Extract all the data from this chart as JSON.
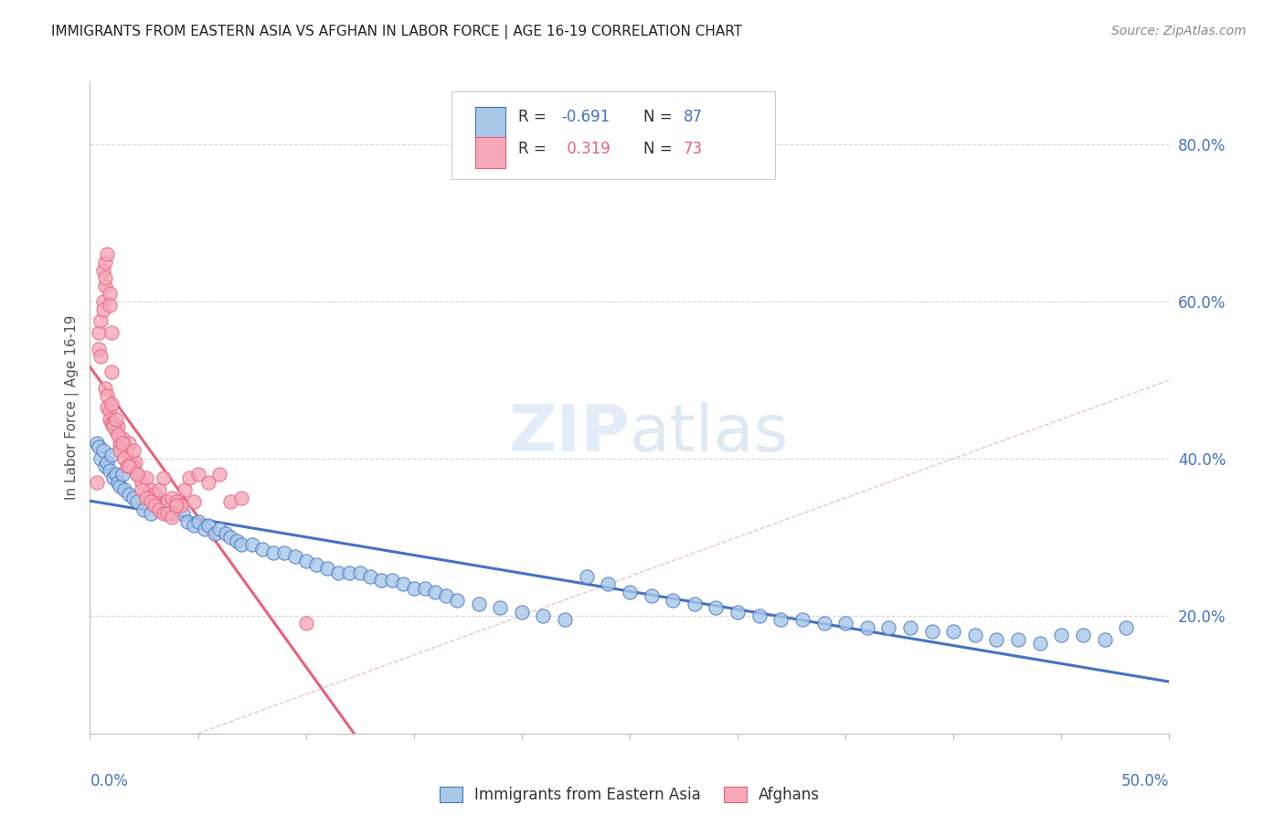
{
  "title": "IMMIGRANTS FROM EASTERN ASIA VS AFGHAN IN LABOR FORCE | AGE 16-19 CORRELATION CHART",
  "source": "Source: ZipAtlas.com",
  "ylabel": "In Labor Force | Age 16-19",
  "right_yticks": [
    "80.0%",
    "60.0%",
    "40.0%",
    "20.0%"
  ],
  "right_ytick_vals": [
    0.8,
    0.6,
    0.4,
    0.2
  ],
  "xlim": [
    0.0,
    0.5
  ],
  "ylim": [
    0.05,
    0.88
  ],
  "color_eastern_asia": "#a8c8e8",
  "color_afghans": "#f5a8b8",
  "color_line_eastern_asia": "#4472c4",
  "color_line_afghans": "#e8607a",
  "color_diagonal": "#e0b8c0",
  "color_title": "#222222",
  "color_source": "#888888",
  "color_axis_labels": "#4472c4",
  "color_grid": "#d8d8d8",
  "watermark_zip": "ZIP",
  "watermark_atlas": "atlas",
  "ea_r": -0.691,
  "ea_n": 87,
  "af_r": 0.319,
  "af_n": 73,
  "eastern_asia_x": [
    0.003,
    0.004,
    0.005,
    0.006,
    0.007,
    0.008,
    0.009,
    0.01,
    0.011,
    0.012,
    0.013,
    0.014,
    0.015,
    0.016,
    0.018,
    0.02,
    0.022,
    0.025,
    0.028,
    0.03,
    0.032,
    0.035,
    0.038,
    0.04,
    0.043,
    0.045,
    0.048,
    0.05,
    0.053,
    0.055,
    0.058,
    0.06,
    0.063,
    0.065,
    0.068,
    0.07,
    0.075,
    0.08,
    0.085,
    0.09,
    0.095,
    0.1,
    0.105,
    0.11,
    0.115,
    0.12,
    0.125,
    0.13,
    0.135,
    0.14,
    0.145,
    0.15,
    0.155,
    0.16,
    0.165,
    0.17,
    0.18,
    0.19,
    0.2,
    0.21,
    0.22,
    0.23,
    0.24,
    0.25,
    0.26,
    0.27,
    0.28,
    0.29,
    0.3,
    0.31,
    0.32,
    0.33,
    0.34,
    0.35,
    0.36,
    0.37,
    0.38,
    0.39,
    0.4,
    0.41,
    0.42,
    0.43,
    0.44,
    0.45,
    0.46,
    0.47,
    0.48
  ],
  "eastern_asia_y": [
    0.42,
    0.415,
    0.4,
    0.41,
    0.39,
    0.395,
    0.385,
    0.405,
    0.375,
    0.38,
    0.37,
    0.365,
    0.38,
    0.36,
    0.355,
    0.35,
    0.345,
    0.335,
    0.33,
    0.355,
    0.34,
    0.34,
    0.33,
    0.34,
    0.33,
    0.32,
    0.315,
    0.32,
    0.31,
    0.315,
    0.305,
    0.31,
    0.305,
    0.3,
    0.295,
    0.29,
    0.29,
    0.285,
    0.28,
    0.28,
    0.275,
    0.27,
    0.265,
    0.26,
    0.255,
    0.255,
    0.255,
    0.25,
    0.245,
    0.245,
    0.24,
    0.235,
    0.235,
    0.23,
    0.225,
    0.22,
    0.215,
    0.21,
    0.205,
    0.2,
    0.195,
    0.25,
    0.24,
    0.23,
    0.225,
    0.22,
    0.215,
    0.21,
    0.205,
    0.2,
    0.195,
    0.195,
    0.19,
    0.19,
    0.185,
    0.185,
    0.185,
    0.18,
    0.18,
    0.175,
    0.17,
    0.17,
    0.165,
    0.175,
    0.175,
    0.17,
    0.185
  ],
  "afghans_x": [
    0.003,
    0.004,
    0.004,
    0.005,
    0.005,
    0.006,
    0.006,
    0.007,
    0.007,
    0.008,
    0.008,
    0.009,
    0.009,
    0.01,
    0.01,
    0.011,
    0.012,
    0.013,
    0.014,
    0.015,
    0.016,
    0.017,
    0.018,
    0.019,
    0.02,
    0.021,
    0.022,
    0.024,
    0.026,
    0.028,
    0.03,
    0.032,
    0.034,
    0.036,
    0.038,
    0.04,
    0.042,
    0.044,
    0.046,
    0.048,
    0.05,
    0.055,
    0.06,
    0.065,
    0.07,
    0.006,
    0.007,
    0.007,
    0.008,
    0.009,
    0.009,
    0.01,
    0.01,
    0.011,
    0.012,
    0.013,
    0.014,
    0.015,
    0.016,
    0.017,
    0.018,
    0.02,
    0.022,
    0.024,
    0.026,
    0.028,
    0.03,
    0.032,
    0.034,
    0.036,
    0.038,
    0.04,
    0.1
  ],
  "afghans_y": [
    0.37,
    0.54,
    0.56,
    0.53,
    0.575,
    0.6,
    0.59,
    0.62,
    0.49,
    0.48,
    0.465,
    0.46,
    0.45,
    0.445,
    0.47,
    0.445,
    0.435,
    0.44,
    0.42,
    0.425,
    0.415,
    0.41,
    0.42,
    0.395,
    0.39,
    0.395,
    0.38,
    0.37,
    0.375,
    0.36,
    0.355,
    0.36,
    0.375,
    0.345,
    0.35,
    0.345,
    0.34,
    0.36,
    0.375,
    0.345,
    0.38,
    0.37,
    0.38,
    0.345,
    0.35,
    0.64,
    0.65,
    0.63,
    0.66,
    0.61,
    0.595,
    0.56,
    0.51,
    0.44,
    0.45,
    0.43,
    0.41,
    0.42,
    0.4,
    0.39,
    0.39,
    0.41,
    0.38,
    0.36,
    0.35,
    0.345,
    0.34,
    0.335,
    0.33,
    0.33,
    0.325,
    0.34,
    0.19
  ]
}
